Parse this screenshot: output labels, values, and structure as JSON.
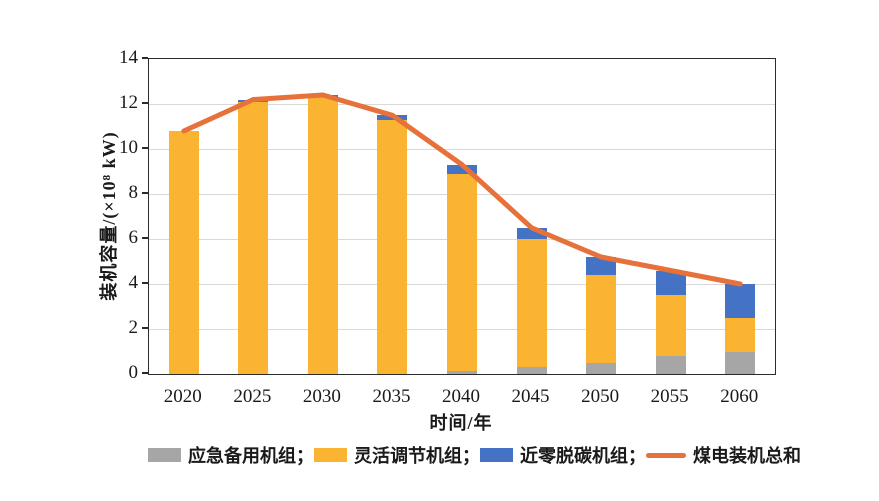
{
  "figure": {
    "background": "#ffffff",
    "axis_color": "#2b2b2b",
    "grid_color": "#d9d9d9",
    "text_color": "#1a1a1a"
  },
  "chart_data": {
    "type": "bar",
    "title": "",
    "categories": [
      "2020",
      "2025",
      "2030",
      "2035",
      "2040",
      "2045",
      "2050",
      "2055",
      "2060"
    ],
    "series": [
      {
        "key": "emergency-backup-units",
        "name": "应急备用机组",
        "legend_label": "应急备用机组；",
        "type": "bar",
        "stack": "coal",
        "color": "#A6A6A6",
        "values": [
          0,
          0,
          0,
          0,
          0.15,
          0.3,
          0.5,
          0.8,
          1.0
        ]
      },
      {
        "key": "flexible-regulation-units",
        "name": "灵活调节机组",
        "legend_label": "灵活调节机组；",
        "type": "bar",
        "stack": "coal",
        "color": "#FBB431",
        "values": [
          10.8,
          12.1,
          12.3,
          11.3,
          8.75,
          5.7,
          3.9,
          2.7,
          1.5
        ]
      },
      {
        "key": "near-zero-decarbonized-units",
        "name": "近零脱碳机组",
        "legend_label": "近零脱碳机组；",
        "type": "bar",
        "stack": "coal",
        "color": "#4472C4",
        "values": [
          0,
          0.1,
          0.1,
          0.2,
          0.4,
          0.5,
          0.8,
          1.1,
          1.5
        ]
      },
      {
        "key": "coal-power-total",
        "name": "煤电装机总和",
        "legend_label": "煤电装机总和",
        "type": "line",
        "color": "#E7713A",
        "values": [
          10.8,
          12.2,
          12.4,
          11.5,
          9.3,
          6.5,
          5.2,
          4.6,
          4.0
        ]
      }
    ],
    "xlabel": "时间/年",
    "ylabel": "装机容量/(×10⁸ kW)",
    "ylim": [
      0,
      14
    ],
    "ytick_step": 2,
    "yticks": [
      "0",
      "2",
      "4",
      "6",
      "8",
      "10",
      "12",
      "14"
    ],
    "grid": true,
    "legend_position": "bottom"
  }
}
